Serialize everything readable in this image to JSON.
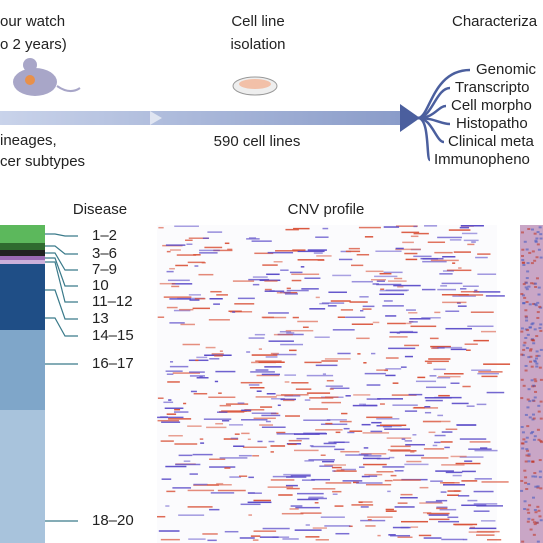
{
  "workflow": {
    "stage1": {
      "line1": "our watch",
      "line2": "o 2 years)",
      "caption1": "ineages,",
      "caption2": "cer subtypes"
    },
    "stage2": {
      "line1": "Cell line",
      "line2": "isolation",
      "caption": "590 cell lines"
    },
    "stage3": {
      "title": "Characteriza",
      "items": [
        "Genomic",
        "Transcripto",
        "Cell morpho",
        "Histopatho",
        "Clinical meta",
        "Immunopheno"
      ]
    }
  },
  "panel": {
    "disease_title": "Disease",
    "cnv_title": "CNV profile",
    "disease_labels": [
      "1–2",
      "3–6",
      "7–9",
      "10",
      "11–12",
      "13",
      "14–15",
      "16–17",
      "18–20"
    ]
  }
}
